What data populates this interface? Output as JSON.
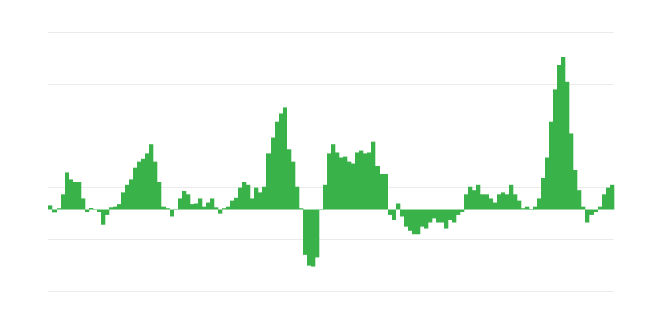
{
  "chart_data": {
    "type": "bar",
    "title": "",
    "xlabel": "",
    "ylabel": "",
    "ylim": [
      -1.57,
      3.43
    ],
    "gridlines": [
      -1.57,
      -0.57,
      0.43,
      1.43,
      2.43,
      3.43
    ],
    "grid": true,
    "legend": "none",
    "bar_color": "#39b24a",
    "grid_color": "#ebebeb",
    "values": [
      0.08,
      -0.06,
      0.02,
      0.3,
      0.72,
      0.58,
      0.53,
      0.53,
      0.22,
      -0.05,
      0.03,
      0,
      -0.05,
      -0.3,
      -0.1,
      0.05,
      0.06,
      0.1,
      0.33,
      0.48,
      0.58,
      0.81,
      0.92,
      0.98,
      1.08,
      1.27,
      0.92,
      0.53,
      0.06,
      0.02,
      -0.14,
      0,
      0.22,
      0.36,
      0.3,
      0.1,
      0.11,
      0.22,
      0.06,
      0.14,
      0.22,
      0.05,
      -0.08,
      0.02,
      0.06,
      0.17,
      0.23,
      0.42,
      0.53,
      0.48,
      0.22,
      0.42,
      0.33,
      0.45,
      1.08,
      1.39,
      1.7,
      1.86,
      1.97,
      1.16,
      0.92,
      0.45,
      0.02,
      -0.88,
      -1.08,
      -1.11,
      -0.92,
      0,
      0.48,
      1.08,
      1.27,
      1.11,
      1.0,
      1.03,
      0.92,
      0.89,
      1.11,
      1.14,
      1.08,
      1.11,
      1.31,
      0.84,
      0.69,
      0.69,
      -0.1,
      -0.2,
      0.11,
      -0.14,
      -0.33,
      -0.41,
      -0.48,
      -0.48,
      -0.33,
      -0.36,
      -0.25,
      -0.17,
      -0.25,
      -0.25,
      -0.36,
      -0.2,
      -0.25,
      -0.1,
      -0.05,
      0.3,
      0.45,
      0.38,
      0.48,
      0.3,
      0.3,
      0.22,
      0.14,
      0.3,
      0.33,
      0.3,
      0.48,
      0.3,
      0.17,
      0.02,
      0.06,
      0,
      0.06,
      0.22,
      0.61,
      1.0,
      1.7,
      2.33,
      2.8,
      2.95,
      2.48,
      1.47,
      0.77,
      0.38,
      0.06,
      -0.25,
      -0.1,
      -0.05,
      0.06,
      0.3,
      0.42,
      0.48
    ]
  }
}
